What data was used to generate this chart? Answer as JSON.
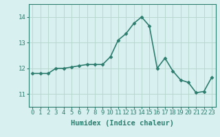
{
  "x": [
    0,
    1,
    2,
    3,
    4,
    5,
    6,
    7,
    8,
    9,
    10,
    11,
    12,
    13,
    14,
    15,
    16,
    17,
    18,
    19,
    20,
    21,
    22,
    23
  ],
  "y": [
    11.8,
    11.8,
    11.8,
    12.0,
    12.0,
    12.05,
    12.1,
    12.15,
    12.15,
    12.15,
    12.45,
    13.1,
    13.35,
    13.75,
    14.0,
    13.65,
    12.0,
    12.4,
    11.9,
    11.55,
    11.45,
    11.05,
    11.1,
    11.65
  ],
  "line_color": "#2d7d6e",
  "marker": "D",
  "marker_size": 2.5,
  "bg_color": "#d8f0f0",
  "grid_color": "#b8d8d0",
  "xlabel": "Humidex (Indice chaleur)",
  "ylim": [
    10.5,
    14.5
  ],
  "xlim": [
    -0.5,
    23.5
  ],
  "yticks": [
    11,
    12,
    13,
    14
  ],
  "xticks": [
    0,
    1,
    2,
    3,
    4,
    5,
    6,
    7,
    8,
    9,
    10,
    11,
    12,
    13,
    14,
    15,
    16,
    17,
    18,
    19,
    20,
    21,
    22,
    23
  ],
  "tick_color": "#2d7d6e",
  "label_color": "#2d7d6e",
  "spine_color": "#2d7d6e",
  "xlabel_fontsize": 7.5,
  "tick_fontsize": 6.5,
  "linewidth": 1.2
}
